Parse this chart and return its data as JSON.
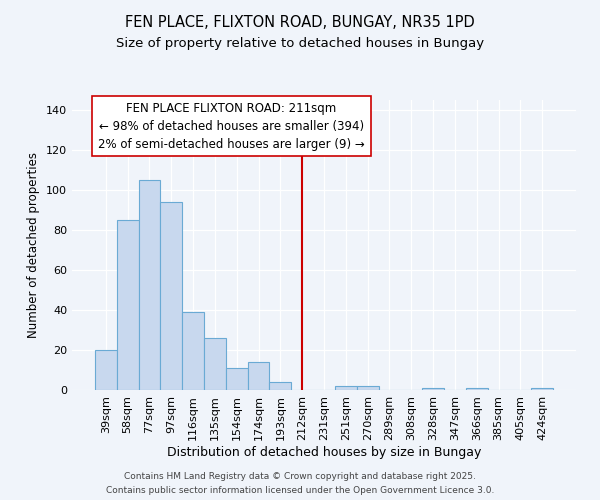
{
  "title": "FEN PLACE, FLIXTON ROAD, BUNGAY, NR35 1PD",
  "subtitle": "Size of property relative to detached houses in Bungay",
  "xlabel": "Distribution of detached houses by size in Bungay",
  "ylabel": "Number of detached properties",
  "bin_labels": [
    "39sqm",
    "58sqm",
    "77sqm",
    "97sqm",
    "116sqm",
    "135sqm",
    "154sqm",
    "174sqm",
    "193sqm",
    "212sqm",
    "231sqm",
    "251sqm",
    "270sqm",
    "289sqm",
    "308sqm",
    "328sqm",
    "347sqm",
    "366sqm",
    "385sqm",
    "405sqm",
    "424sqm"
  ],
  "bar_heights": [
    20,
    85,
    105,
    94,
    39,
    26,
    11,
    14,
    4,
    0,
    0,
    2,
    2,
    0,
    0,
    1,
    0,
    1,
    0,
    0,
    1
  ],
  "bar_color": "#c8d8ee",
  "bar_edge_color": "#6aaad4",
  "vline_x": 9.0,
  "vline_color": "#cc0000",
  "annotation_line1": "FEN PLACE FLIXTON ROAD: 211sqm",
  "annotation_line2": "← 98% of detached houses are smaller (394)",
  "annotation_line3": "2% of semi-detached houses are larger (9) →",
  "annotation_box_edge": "#cc0000",
  "ylim": [
    0,
    145
  ],
  "yticks": [
    0,
    20,
    40,
    60,
    80,
    100,
    120,
    140
  ],
  "bg_color": "#f0f4fa",
  "grid_color": "#ffffff",
  "footer1": "Contains HM Land Registry data © Crown copyright and database right 2025.",
  "footer2": "Contains public sector information licensed under the Open Government Licence 3.0.",
  "title_fontsize": 10.5,
  "subtitle_fontsize": 9.5,
  "annotation_fontsize": 8.5,
  "footer_fontsize": 6.5
}
